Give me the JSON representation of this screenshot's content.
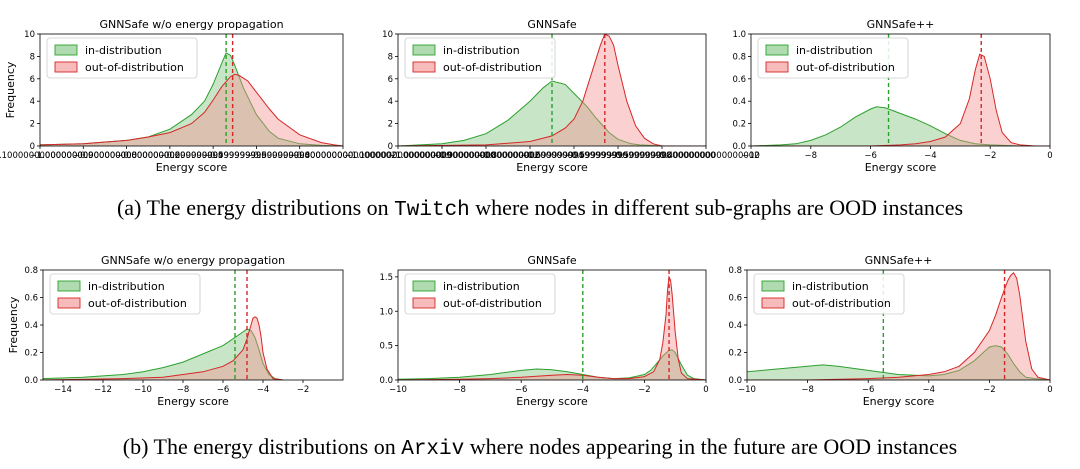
{
  "captions": {
    "a": {
      "label": "(a) The energy distributions on",
      "dataset": "Twitch",
      "tail": "where nodes in different sub-graphs are OOD instances"
    },
    "b": {
      "label": "(b) The energy distributions on",
      "dataset": "Arxiv",
      "tail": "where nodes appearing in the future are OOD instances"
    }
  },
  "colors": {
    "in_fill": "#7cc27c",
    "in_line": "#2ca02c",
    "ood_fill": "#f28e8e",
    "ood_line": "#d62728"
  },
  "chart_data": [
    {
      "id": "a1",
      "type": "area",
      "title": "GNNSafe w/o energy propagation",
      "xlabel": "Energy score",
      "ylabel": "Frequency",
      "xlim": [
        -1.1,
        -0.4
      ],
      "xticks": [
        -1.1,
        -1.0,
        -0.9,
        -0.8,
        -0.7,
        -0.6,
        -0.5,
        -0.4
      ],
      "ylim": [
        0,
        10
      ],
      "yticks": [
        0,
        2,
        4,
        6,
        8,
        10
      ],
      "legend": {
        "placement": "top-left",
        "entries": [
          "in-distribution",
          "out-of-distribution"
        ]
      },
      "series": [
        {
          "name": "in-distribution",
          "x": [
            -1.1,
            -1.0,
            -0.9,
            -0.85,
            -0.8,
            -0.75,
            -0.72,
            -0.7,
            -0.68,
            -0.67,
            -0.66,
            -0.65,
            -0.63,
            -0.6,
            -0.57,
            -0.55,
            -0.5,
            -0.45,
            -0.4
          ],
          "y": [
            0.1,
            0.2,
            0.5,
            0.8,
            1.5,
            2.8,
            4.0,
            5.5,
            7.4,
            8.3,
            8.1,
            7.2,
            5.2,
            2.8,
            1.3,
            0.7,
            0.2,
            0.05,
            0
          ]
        },
        {
          "name": "out-of-distribution",
          "x": [
            -1.1,
            -1.0,
            -0.9,
            -0.85,
            -0.8,
            -0.75,
            -0.72,
            -0.7,
            -0.68,
            -0.66,
            -0.65,
            -0.64,
            -0.62,
            -0.6,
            -0.57,
            -0.55,
            -0.5,
            -0.45,
            -0.42,
            -0.4
          ],
          "y": [
            0.1,
            0.2,
            0.5,
            0.8,
            1.2,
            2.0,
            3.0,
            4.1,
            5.3,
            6.2,
            6.4,
            6.3,
            5.8,
            4.8,
            3.3,
            2.4,
            1.0,
            0.3,
            0.1,
            0
          ]
        }
      ],
      "mean_lines": [
        {
          "series": "in-distribution",
          "x": -0.67
        },
        {
          "series": "out-of-distribution",
          "x": -0.655
        }
      ]
    },
    {
      "id": "a2",
      "type": "area",
      "title": "GNNSafe",
      "xlabel": "Energy score",
      "ylabel": "",
      "xlim": [
        -1.1,
        -0.4
      ],
      "xticks": [
        -1.1,
        -1.0,
        -0.9,
        -0.8,
        -0.7,
        -0.6,
        -0.5,
        -0.4
      ],
      "ylim": [
        0,
        10
      ],
      "yticks": [
        0,
        2,
        4,
        6,
        8,
        10
      ],
      "legend": {
        "placement": "top-left",
        "entries": [
          "in-distribution",
          "out-of-distribution"
        ]
      },
      "series": [
        {
          "name": "in-distribution",
          "x": [
            -1.1,
            -1.0,
            -0.95,
            -0.9,
            -0.85,
            -0.8,
            -0.77,
            -0.75,
            -0.72,
            -0.7,
            -0.67,
            -0.65,
            -0.62,
            -0.6,
            -0.57,
            -0.55,
            -0.5,
            -0.4
          ],
          "y": [
            0,
            0.2,
            0.5,
            1.1,
            2.3,
            4.0,
            5.2,
            5.8,
            5.5,
            4.7,
            3.5,
            2.5,
            1.2,
            0.6,
            0.2,
            0.1,
            0,
            0
          ]
        },
        {
          "name": "out-of-distribution",
          "x": [
            -1.1,
            -0.9,
            -0.8,
            -0.75,
            -0.72,
            -0.7,
            -0.68,
            -0.66,
            -0.64,
            -0.63,
            -0.62,
            -0.61,
            -0.6,
            -0.58,
            -0.56,
            -0.54,
            -0.52,
            -0.5,
            -0.4
          ],
          "y": [
            0,
            0.1,
            0.4,
            0.9,
            1.6,
            2.4,
            4.0,
            6.5,
            9.0,
            10.0,
            9.8,
            9.0,
            7.2,
            4.0,
            1.8,
            0.7,
            0.2,
            0,
            0
          ]
        }
      ],
      "mean_lines": [
        {
          "series": "in-distribution",
          "x": -0.75
        },
        {
          "series": "out-of-distribution",
          "x": -0.63
        }
      ]
    },
    {
      "id": "a3",
      "type": "area",
      "title": "GNNSafe++",
      "xlabel": "Energy score",
      "ylabel": "",
      "xlim": [
        -10,
        0
      ],
      "xticks": [
        -10,
        -8,
        -6,
        -4,
        -2,
        0
      ],
      "ylim": [
        0,
        1.0
      ],
      "yticks": [
        0.0,
        0.2,
        0.4,
        0.6,
        0.8,
        1.0
      ],
      "legend": {
        "placement": "top-left",
        "entries": [
          "in-distribution",
          "out-of-distribution"
        ]
      },
      "series": [
        {
          "name": "in-distribution",
          "x": [
            -10,
            -9,
            -8.5,
            -8,
            -7.5,
            -7,
            -6.5,
            -6,
            -5.8,
            -5.5,
            -5,
            -4.5,
            -4,
            -3.5,
            -3,
            -2.5,
            -2,
            -1,
            0
          ],
          "y": [
            0,
            0.01,
            0.02,
            0.05,
            0.1,
            0.17,
            0.26,
            0.33,
            0.35,
            0.34,
            0.29,
            0.24,
            0.18,
            0.11,
            0.05,
            0.02,
            0.01,
            0,
            0
          ]
        },
        {
          "name": "out-of-distribution",
          "x": [
            -10,
            -6,
            -5,
            -4.5,
            -4,
            -3.5,
            -3,
            -2.7,
            -2.5,
            -2.35,
            -2.2,
            -2,
            -1.8,
            -1.6,
            -1.3,
            -1,
            -0.5,
            0
          ],
          "y": [
            0,
            0,
            0.01,
            0.02,
            0.04,
            0.08,
            0.2,
            0.42,
            0.68,
            0.82,
            0.8,
            0.6,
            0.32,
            0.12,
            0.03,
            0.01,
            0,
            0
          ]
        }
      ],
      "mean_lines": [
        {
          "series": "in-distribution",
          "x": -5.4
        },
        {
          "series": "out-of-distribution",
          "x": -2.3
        }
      ]
    },
    {
      "id": "b1",
      "type": "area",
      "title": "GNNSafe w/o energy propagation",
      "xlabel": "Energy score",
      "ylabel": "Frequency",
      "xlim": [
        -15,
        0
      ],
      "xticks": [
        -14,
        -12,
        -10,
        -8,
        -6,
        -4,
        -2
      ],
      "ylim": [
        0,
        0.8
      ],
      "yticks": [
        0.0,
        0.2,
        0.4,
        0.6,
        0.8
      ],
      "legend": {
        "placement": "top-left",
        "entries": [
          "in-distribution",
          "out-of-distribution"
        ]
      },
      "series": [
        {
          "name": "in-distribution",
          "x": [
            -15,
            -13,
            -11,
            -10,
            -9,
            -8,
            -7,
            -6,
            -5.5,
            -5,
            -4.8,
            -4.6,
            -4.4,
            -4.2,
            -4,
            -3.7,
            -3.4,
            -3
          ],
          "y": [
            0.01,
            0.02,
            0.04,
            0.06,
            0.09,
            0.13,
            0.19,
            0.25,
            0.3,
            0.35,
            0.37,
            0.36,
            0.31,
            0.22,
            0.12,
            0.04,
            0.01,
            0
          ]
        },
        {
          "name": "out-of-distribution",
          "x": [
            -15,
            -11,
            -9,
            -8,
            -7,
            -6,
            -5.5,
            -5,
            -4.8,
            -4.6,
            -4.5,
            -4.4,
            -4.3,
            -4.2,
            -4.1,
            -4,
            -3.8,
            -3.5,
            -3
          ],
          "y": [
            0,
            0.01,
            0.02,
            0.04,
            0.06,
            0.1,
            0.14,
            0.22,
            0.3,
            0.4,
            0.45,
            0.46,
            0.45,
            0.4,
            0.32,
            0.2,
            0.08,
            0.01,
            0
          ]
        }
      ],
      "mean_lines": [
        {
          "series": "in-distribution",
          "x": -5.4
        },
        {
          "series": "out-of-distribution",
          "x": -4.8
        }
      ]
    },
    {
      "id": "b2",
      "type": "area",
      "title": "GNNSafe",
      "xlabel": "Energy score",
      "ylabel": "",
      "xlim": [
        -10,
        0
      ],
      "xticks": [
        -10,
        -8,
        -6,
        -4,
        -2,
        0
      ],
      "ylim": [
        0,
        1.6
      ],
      "yticks": [
        0.0,
        0.5,
        1.0,
        1.5
      ],
      "legend": {
        "placement": "top-left",
        "entries": [
          "in-distribution",
          "out-of-distribution"
        ]
      },
      "series": [
        {
          "name": "in-distribution",
          "x": [
            -10,
            -9,
            -8,
            -7,
            -6.5,
            -6,
            -5.5,
            -5,
            -4.5,
            -4,
            -3.5,
            -3,
            -2.5,
            -2,
            -1.8,
            -1.6,
            -1.4,
            -1.2,
            -1.1,
            -1,
            -0.8,
            -0.6,
            -0.4,
            0
          ],
          "y": [
            0.01,
            0.02,
            0.04,
            0.08,
            0.11,
            0.14,
            0.16,
            0.15,
            0.12,
            0.08,
            0.04,
            0.02,
            0.03,
            0.08,
            0.14,
            0.24,
            0.35,
            0.43,
            0.44,
            0.4,
            0.22,
            0.07,
            0.02,
            0
          ]
        },
        {
          "name": "out-of-distribution",
          "x": [
            -10,
            -8,
            -7,
            -6,
            -5,
            -4.5,
            -4,
            -3.5,
            -3,
            -2.5,
            -2,
            -1.7,
            -1.5,
            -1.4,
            -1.3,
            -1.25,
            -1.2,
            -1.15,
            -1.1,
            -1,
            -0.9,
            -0.8,
            -0.6,
            0
          ],
          "y": [
            0,
            0.01,
            0.02,
            0.04,
            0.07,
            0.08,
            0.07,
            0.04,
            0.02,
            0.02,
            0.05,
            0.12,
            0.3,
            0.55,
            0.95,
            1.3,
            1.5,
            1.45,
            1.25,
            0.7,
            0.3,
            0.1,
            0.02,
            0
          ]
        }
      ],
      "mean_lines": [
        {
          "series": "in-distribution",
          "x": -4.0
        },
        {
          "series": "out-of-distribution",
          "x": -1.2
        }
      ]
    },
    {
      "id": "b3",
      "type": "area",
      "title": "GNNSafe++",
      "xlabel": "Energy score",
      "ylabel": "",
      "xlim": [
        -10,
        0
      ],
      "xticks": [
        -10,
        -8,
        -6,
        -4,
        -2,
        0
      ],
      "ylim": [
        0,
        0.8
      ],
      "yticks": [
        0.0,
        0.2,
        0.4,
        0.6,
        0.8
      ],
      "legend": {
        "placement": "top-left",
        "entries": [
          "in-distribution",
          "out-of-distribution"
        ]
      },
      "series": [
        {
          "name": "in-distribution",
          "x": [
            -10,
            -9,
            -8,
            -7.5,
            -7,
            -6,
            -5,
            -4,
            -3.5,
            -3,
            -2.5,
            -2.2,
            -2,
            -1.8,
            -1.6,
            -1.4,
            -1.2,
            -1,
            -0.8,
            -0.5,
            0
          ],
          "y": [
            0.06,
            0.08,
            0.1,
            0.11,
            0.1,
            0.07,
            0.04,
            0.03,
            0.04,
            0.07,
            0.14,
            0.2,
            0.24,
            0.25,
            0.24,
            0.19,
            0.12,
            0.06,
            0.02,
            0.01,
            0
          ]
        },
        {
          "name": "out-of-distribution",
          "x": [
            -10,
            -8,
            -6,
            -5,
            -4,
            -3.5,
            -3,
            -2.5,
            -2,
            -1.8,
            -1.6,
            -1.4,
            -1.3,
            -1.2,
            -1.1,
            -1,
            -0.9,
            -0.8,
            -0.6,
            -0.4,
            0
          ],
          "y": [
            0,
            0,
            0.01,
            0.02,
            0.04,
            0.06,
            0.1,
            0.2,
            0.36,
            0.47,
            0.6,
            0.72,
            0.76,
            0.78,
            0.74,
            0.62,
            0.45,
            0.28,
            0.08,
            0.02,
            0
          ]
        }
      ],
      "mean_lines": [
        {
          "series": "in-distribution",
          "x": -5.5
        },
        {
          "series": "out-of-distribution",
          "x": -1.5
        }
      ]
    }
  ]
}
